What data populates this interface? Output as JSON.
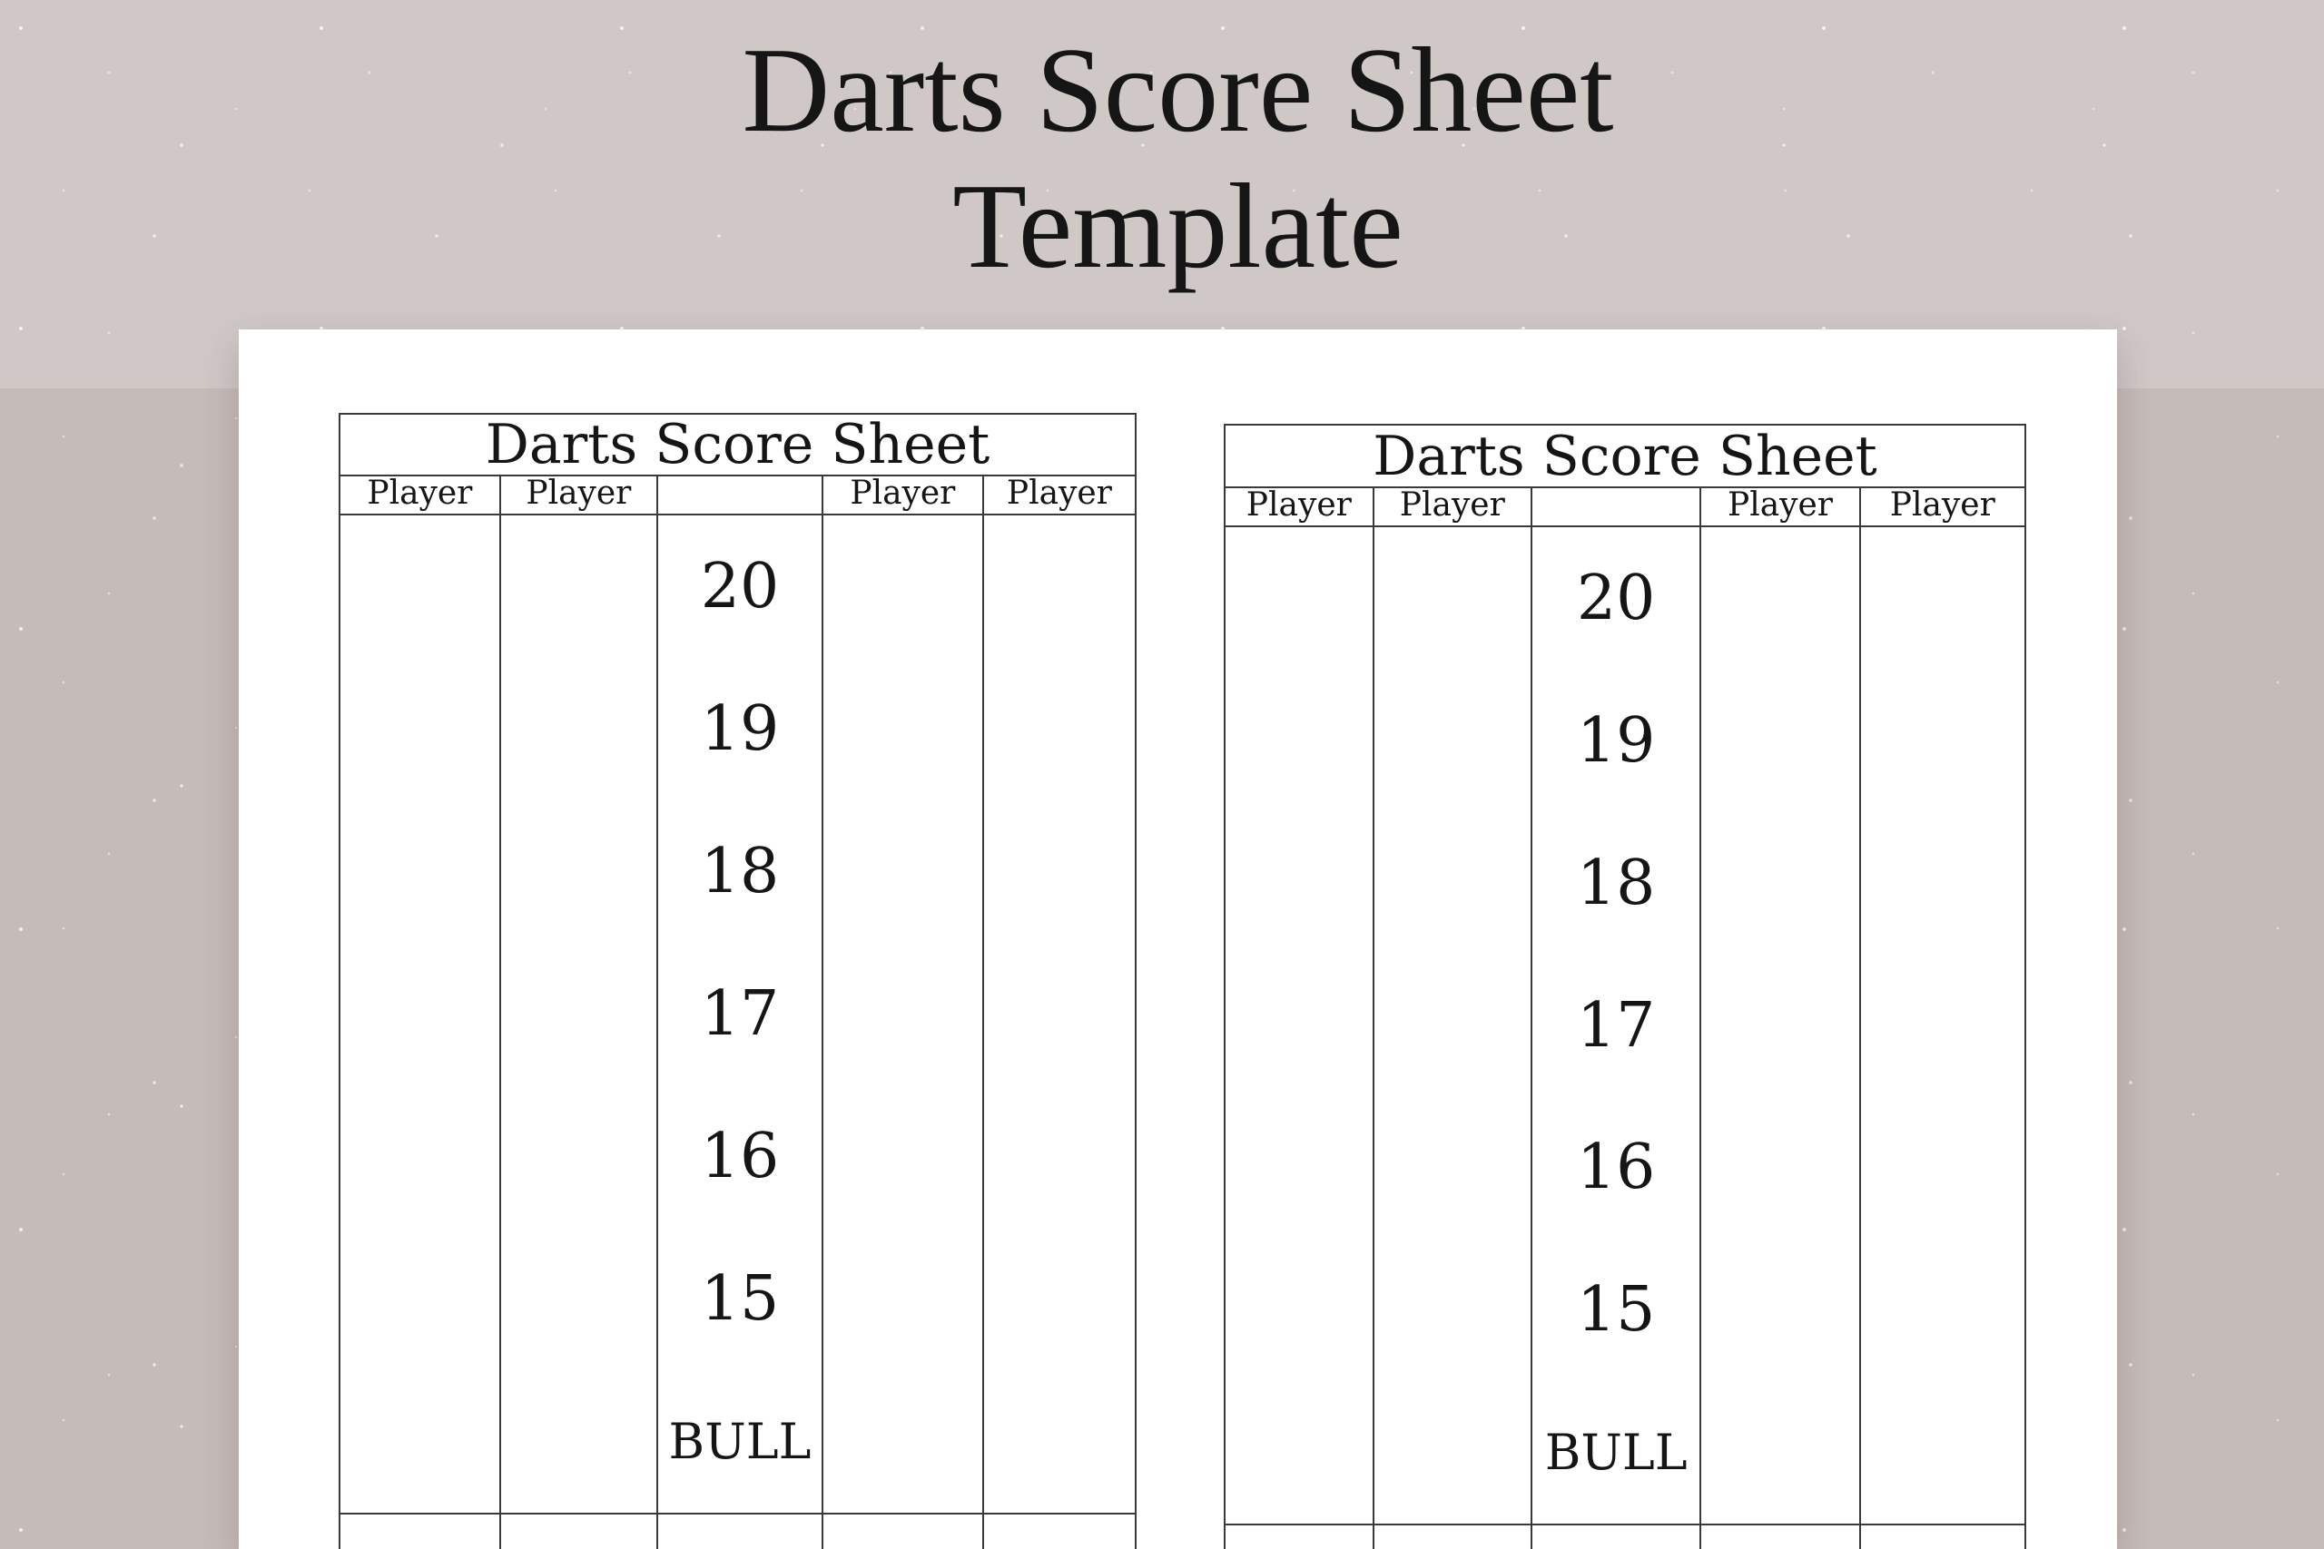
{
  "page_title": {
    "line1": "Darts Score Sheet",
    "line2": "Template"
  },
  "sheets": [
    {
      "title": "Darts Score Sheet",
      "column_headers": [
        "Player",
        "Player",
        "",
        "Player",
        "Player"
      ],
      "targets": [
        "20",
        "19",
        "18",
        "17",
        "16",
        "15",
        "BULL"
      ]
    },
    {
      "title": "Darts Score Sheet",
      "column_headers": [
        "Player",
        "Player",
        "",
        "Player",
        "Player"
      ],
      "targets": [
        "20",
        "19",
        "18",
        "17",
        "16",
        "15",
        "BULL"
      ]
    }
  ],
  "colors": {
    "background_top": "#cfc8c6",
    "background_bottom": "#c5bbb9",
    "paper": "#ffffff",
    "table_line": "#3a3a3a",
    "text": "#151515"
  }
}
